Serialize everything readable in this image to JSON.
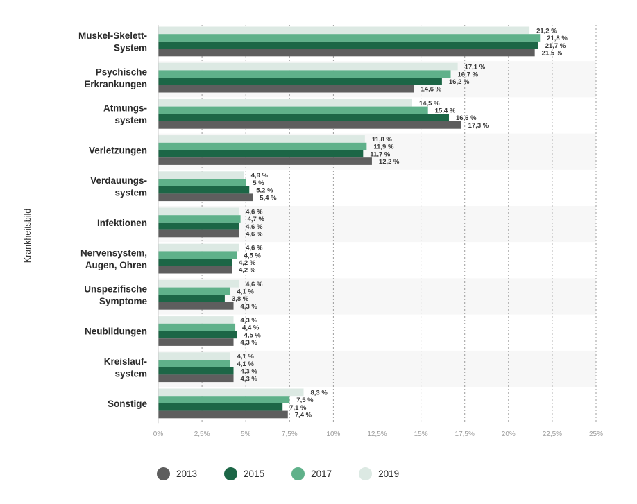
{
  "chart_data": {
    "type": "bar",
    "orientation": "horizontal",
    "ylabel": "Krankheitsbild",
    "xlim": [
      0,
      25
    ],
    "xticks": [
      "0%",
      "2,5%",
      "5%",
      "7,5%",
      "10%",
      "12,5%",
      "15%",
      "17,5%",
      "20%",
      "22,5%",
      "25%"
    ],
    "grid": "vertical dotted",
    "legend_position": "bottom-left",
    "categories": [
      [
        "Muskel-Skelett-",
        "System"
      ],
      [
        "Psychische",
        "Erkrankungen"
      ],
      [
        "Atmungs-",
        "system"
      ],
      [
        "Verletzungen"
      ],
      [
        "Verdauungs-",
        "system"
      ],
      [
        "Infektionen"
      ],
      [
        "Nervensystem,",
        "Augen, Ohren"
      ],
      [
        "Unspezifische",
        "Symptome"
      ],
      [
        "Neubildungen"
      ],
      [
        "Kreislauf-",
        "system"
      ],
      [
        "Sonstige"
      ]
    ],
    "series": [
      {
        "name": "2019",
        "color": "#dce9e3",
        "values": [
          21.2,
          17.1,
          14.5,
          11.8,
          4.9,
          4.6,
          4.6,
          4.6,
          4.3,
          4.1,
          8.3
        ],
        "labels": [
          "21,2 %",
          "17,1 %",
          "14,5 %",
          "11,8 %",
          "4,9 %",
          "4,6 %",
          "4,6 %",
          "4,6 %",
          "4,3 %",
          "4,1 %",
          "8,3 %"
        ]
      },
      {
        "name": "2017",
        "color": "#5fb18a",
        "values": [
          21.8,
          16.7,
          15.4,
          11.9,
          5.0,
          4.7,
          4.5,
          4.1,
          4.4,
          4.1,
          7.5
        ],
        "labels": [
          "21,8 %",
          "16,7 %",
          "15,4 %",
          "11,9 %",
          "5 %",
          "4,7 %",
          "4,5 %",
          "4,1 %",
          "4,4 %",
          "4,1 %",
          "7,5 %"
        ]
      },
      {
        "name": "2015",
        "color": "#1c6646",
        "values": [
          21.7,
          16.2,
          16.6,
          11.7,
          5.2,
          4.6,
          4.2,
          3.8,
          4.5,
          4.3,
          7.1
        ],
        "labels": [
          "21,7 %",
          "16,2 %",
          "16,6 %",
          "11,7 %",
          "5,2 %",
          "4,6 %",
          "4,2 %",
          "3,8 %",
          "4,5 %",
          "4,3 %",
          "7,1 %"
        ]
      },
      {
        "name": "2013",
        "color": "#5e5e5e",
        "values": [
          21.5,
          14.6,
          17.3,
          12.2,
          5.4,
          4.6,
          4.2,
          4.3,
          4.3,
          4.3,
          7.4
        ],
        "labels": [
          "21,5 %",
          "14,6 %",
          "17,3 %",
          "12,2 %",
          "5,4 %",
          "4,6 %",
          "4,2 %",
          "4,3 %",
          "4,3 %",
          "4,3 %",
          "7,4 %"
        ]
      }
    ],
    "legend_order": [
      "2013",
      "2015",
      "2017",
      "2019"
    ],
    "band_color": "#f7f7f7"
  }
}
